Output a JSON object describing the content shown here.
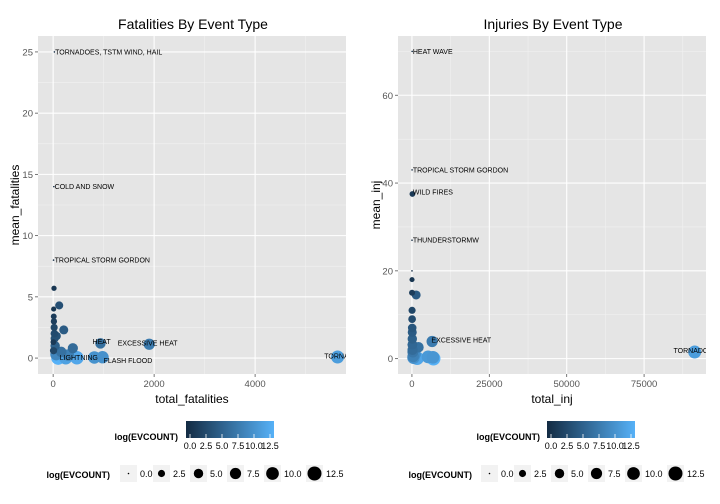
{
  "colors": {
    "low": "#132B43",
    "high": "#56B1F7",
    "panel": "#e5e5e5",
    "grid": "#ffffff"
  },
  "chart_data": [
    {
      "type": "scatter",
      "title": "Fatalities By Event Type",
      "xlabel": "total_fatalities",
      "ylabel": "mean_fatalities",
      "xlim": [
        -300,
        5800
      ],
      "ylim": [
        -1.3,
        26.3
      ],
      "xticks": [
        0,
        2000,
        4000
      ],
      "xtick_labels": [
        "0",
        "2000",
        "4000"
      ],
      "yticks": [
        0,
        5,
        10,
        15,
        20,
        25
      ],
      "ytick_labels": [
        "0",
        "5",
        "10",
        "15",
        "20",
        "25"
      ],
      "grid": true,
      "points": [
        {
          "x": 5633,
          "y": 0.09,
          "c": 10.6,
          "label": "TORNADO",
          "lx": 5370,
          "ly": 0.15
        },
        {
          "x": 1903,
          "y": 1.13,
          "c": 7.5,
          "label": "EXCESSIVE HEAT",
          "lx": 1280,
          "ly": 1.25
        },
        {
          "x": 978,
          "y": 0.07,
          "c": 9.5,
          "label": "FLASH FLOOD",
          "lx": 1000,
          "ly": -0.2
        },
        {
          "x": 937,
          "y": 1.2,
          "c": 6.4,
          "label": "HEAT",
          "lx": 780,
          "ly": 1.35
        },
        {
          "x": 816,
          "y": 0.05,
          "c": 9.6,
          "label": "LIGHTNING",
          "lx": 130,
          "ly": 0.05
        },
        {
          "x": 25,
          "y": 25.0,
          "c": 0.0,
          "label": "TORNADOES, TSTM WIND, HAIL",
          "lx": 40,
          "ly": 25.0
        },
        {
          "x": 14,
          "y": 14.0,
          "c": 0.0,
          "label": "COLD AND SNOW",
          "lx": 30,
          "ly": 14.0
        },
        {
          "x": 8,
          "y": 8.0,
          "c": 0.0,
          "label": "TROPICAL STORM GORDON",
          "lx": 30,
          "ly": 8.0
        },
        {
          "x": 100,
          "y": 0.02,
          "c": 12.5,
          "label": "",
          "lx": 0,
          "ly": 0
        },
        {
          "x": 470,
          "y": 0.03,
          "c": 11.5,
          "label": "",
          "lx": 0,
          "ly": 0
        },
        {
          "x": 250,
          "y": 0.02,
          "c": 11.0,
          "label": "",
          "lx": 0,
          "ly": 0
        },
        {
          "x": 390,
          "y": 0.8,
          "c": 6.0,
          "label": "",
          "lx": 0,
          "ly": 0
        },
        {
          "x": 210,
          "y": 2.3,
          "c": 4.5,
          "label": "",
          "lx": 0,
          "ly": 0
        },
        {
          "x": 120,
          "y": 4.3,
          "c": 3.4,
          "label": "",
          "lx": 0,
          "ly": 0
        },
        {
          "x": 160,
          "y": 0.5,
          "c": 6.5,
          "label": "",
          "lx": 0,
          "ly": 0
        },
        {
          "x": 60,
          "y": 0.3,
          "c": 8.5,
          "label": "",
          "lx": 0,
          "ly": 0
        },
        {
          "x": 40,
          "y": 1.0,
          "c": 5.0,
          "label": "",
          "lx": 0,
          "ly": 0
        },
        {
          "x": 30,
          "y": 1.6,
          "c": 3.5,
          "label": "",
          "lx": 0,
          "ly": 0
        },
        {
          "x": 25,
          "y": 2.0,
          "c": 3.0,
          "label": "",
          "lx": 0,
          "ly": 0
        },
        {
          "x": 20,
          "y": 2.5,
          "c": 2.5,
          "label": "",
          "lx": 0,
          "ly": 0
        },
        {
          "x": 15,
          "y": 3.0,
          "c": 1.8,
          "label": "",
          "lx": 0,
          "ly": 0
        },
        {
          "x": 12,
          "y": 3.4,
          "c": 1.5,
          "label": "",
          "lx": 0,
          "ly": 0
        },
        {
          "x": 10,
          "y": 4.0,
          "c": 1.0,
          "label": "",
          "lx": 0,
          "ly": 0
        },
        {
          "x": 17,
          "y": 5.7,
          "c": 1.1,
          "label": "",
          "lx": 0,
          "ly": 0
        },
        {
          "x": 8,
          "y": 0.6,
          "c": 2.6,
          "label": "",
          "lx": 0,
          "ly": 0
        },
        {
          "x": 5,
          "y": 1.3,
          "c": 1.4,
          "label": "",
          "lx": 0,
          "ly": 0
        },
        {
          "x": 70,
          "y": 1.8,
          "c": 3.7,
          "label": "",
          "lx": 0,
          "ly": 0
        },
        {
          "x": 300,
          "y": 0.25,
          "c": 8.0,
          "label": "",
          "lx": 0,
          "ly": 0
        }
      ]
    },
    {
      "type": "scatter",
      "title": "Injuries By Event Type",
      "xlabel": "total_inj",
      "ylabel": "mean_inj",
      "xlim": [
        -4500,
        95000
      ],
      "ylim": [
        -3.5,
        73.5
      ],
      "xticks": [
        0,
        25000,
        50000,
        75000
      ],
      "xtick_labels": [
        "0",
        "25000",
        "50000",
        "75000"
      ],
      "yticks": [
        0,
        20,
        40,
        60
      ],
      "ytick_labels": [
        "0",
        "20",
        "40",
        "60"
      ],
      "grid": true,
      "points": [
        {
          "x": 91346,
          "y": 1.5,
          "c": 10.6,
          "label": "TORNADO",
          "lx": 84500,
          "ly": 1.8
        },
        {
          "x": 6525,
          "y": 3.9,
          "c": 7.5,
          "label": "EXCESSIVE HEAT",
          "lx": 6300,
          "ly": 4.2
        },
        {
          "x": 70,
          "y": 70.0,
          "c": 0.0,
          "label": "HEAT WAVE",
          "lx": 300,
          "ly": 70.0
        },
        {
          "x": 43,
          "y": 43.0,
          "c": 0.0,
          "label": "TROPICAL STORM GORDON",
          "lx": 300,
          "ly": 43.0
        },
        {
          "x": 150,
          "y": 37.5,
          "c": 1.4,
          "label": "WILD FIRES",
          "lx": 300,
          "ly": 38.0
        },
        {
          "x": 27,
          "y": 27.0,
          "c": 0.0,
          "label": "THUNDERSTORMW",
          "lx": 300,
          "ly": 27.0
        },
        {
          "x": 6957,
          "y": 0.02,
          "c": 12.5,
          "label": "",
          "lx": 0,
          "ly": 0
        },
        {
          "x": 6789,
          "y": 0.3,
          "c": 10.0,
          "label": "",
          "lx": 0,
          "ly": 0
        },
        {
          "x": 5230,
          "y": 0.4,
          "c": 10.3,
          "label": "",
          "lx": 0,
          "ly": 0
        },
        {
          "x": 1700,
          "y": 0.1,
          "c": 11.5,
          "label": "",
          "lx": 0,
          "ly": 0
        },
        {
          "x": 2100,
          "y": 2.6,
          "c": 6.5,
          "label": "",
          "lx": 0,
          "ly": 0
        },
        {
          "x": 1360,
          "y": 14.5,
          "c": 4.5,
          "label": "",
          "lx": 0,
          "ly": 0
        },
        {
          "x": 900,
          "y": 1.0,
          "c": 9.0,
          "label": "",
          "lx": 0,
          "ly": 0
        },
        {
          "x": 400,
          "y": 0.5,
          "c": 8.0,
          "label": "",
          "lx": 0,
          "ly": 0
        },
        {
          "x": 300,
          "y": 1.5,
          "c": 7.0,
          "label": "",
          "lx": 0,
          "ly": 0
        },
        {
          "x": 200,
          "y": 2.0,
          "c": 6.0,
          "label": "",
          "lx": 0,
          "ly": 0
        },
        {
          "x": 150,
          "y": 3.2,
          "c": 5.6,
          "label": "",
          "lx": 0,
          "ly": 0
        },
        {
          "x": 120,
          "y": 4.5,
          "c": 5.0,
          "label": "",
          "lx": 0,
          "ly": 0
        },
        {
          "x": 100,
          "y": 6.0,
          "c": 4.5,
          "label": "",
          "lx": 0,
          "ly": 0
        },
        {
          "x": 90,
          "y": 7.0,
          "c": 4.0,
          "label": "",
          "lx": 0,
          "ly": 0
        },
        {
          "x": 60,
          "y": 9.0,
          "c": 3.0,
          "label": "",
          "lx": 0,
          "ly": 0
        },
        {
          "x": 50,
          "y": 11.0,
          "c": 2.5,
          "label": "",
          "lx": 0,
          "ly": 0
        },
        {
          "x": 45,
          "y": 15.0,
          "c": 1.6,
          "label": "",
          "lx": 0,
          "ly": 0
        },
        {
          "x": 30,
          "y": 18.0,
          "c": 1.0,
          "label": "",
          "lx": 0,
          "ly": 0
        },
        {
          "x": 20,
          "y": 20.0,
          "c": 0.0,
          "label": "",
          "lx": 0,
          "ly": 0
        },
        {
          "x": 500,
          "y": 0.2,
          "c": 9.5,
          "label": "",
          "lx": 0,
          "ly": 0
        }
      ]
    }
  ],
  "legends": {
    "colorbar_title": "log(EVCOUNT)",
    "colorbar_labels": [
      "0.0",
      "2.5",
      "5.0",
      "7.5",
      "10.0",
      "12.5"
    ],
    "size_title": "log(EVCOUNT)",
    "size_labels": [
      "0.0",
      "2.5",
      "5.0",
      "7.5",
      "10.0",
      "12.5"
    ]
  }
}
